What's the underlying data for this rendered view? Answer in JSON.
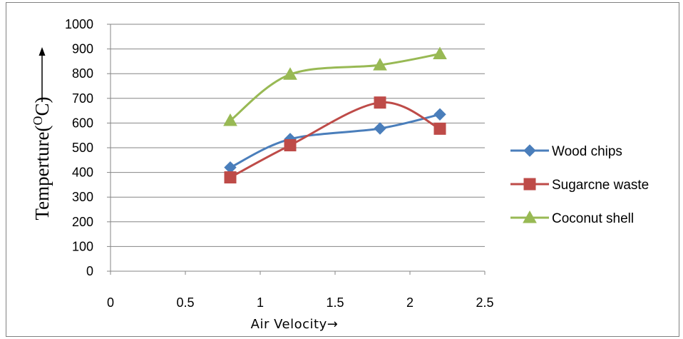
{
  "chart_data": {
    "type": "line",
    "title": "",
    "xlabel": "Air Velocity→",
    "ylabel": "Temperture(",
    "ylabel_sup": "O",
    "ylabel_tail": "C)",
    "xlim": [
      0,
      2.5
    ],
    "ylim": [
      0,
      1000
    ],
    "x_ticks": [
      "0",
      "0.5",
      "1",
      "1.5",
      "2",
      "2.5"
    ],
    "y_ticks": [
      "0",
      "100",
      "200",
      "300",
      "400",
      "500",
      "600",
      "700",
      "800",
      "900",
      "1000"
    ],
    "grid": "horizontal",
    "legend_position": "right",
    "smooth": true,
    "series": [
      {
        "name": "Wood chips",
        "color": "#4a7ebb",
        "marker": "diamond",
        "x": [
          0.8,
          1.2,
          1.8,
          2.2
        ],
        "values": [
          420,
          535,
          578,
          635
        ]
      },
      {
        "name": "Sugarcne waste",
        "color": "#be4b48",
        "marker": "square",
        "x": [
          0.8,
          1.2,
          1.8,
          2.2
        ],
        "values": [
          380,
          510,
          683,
          577
        ]
      },
      {
        "name": "Coconut shell",
        "color": "#98b954",
        "marker": "triangle",
        "x": [
          0.8,
          1.2,
          1.8,
          2.2
        ],
        "values": [
          610,
          797,
          835,
          880
        ]
      }
    ]
  }
}
